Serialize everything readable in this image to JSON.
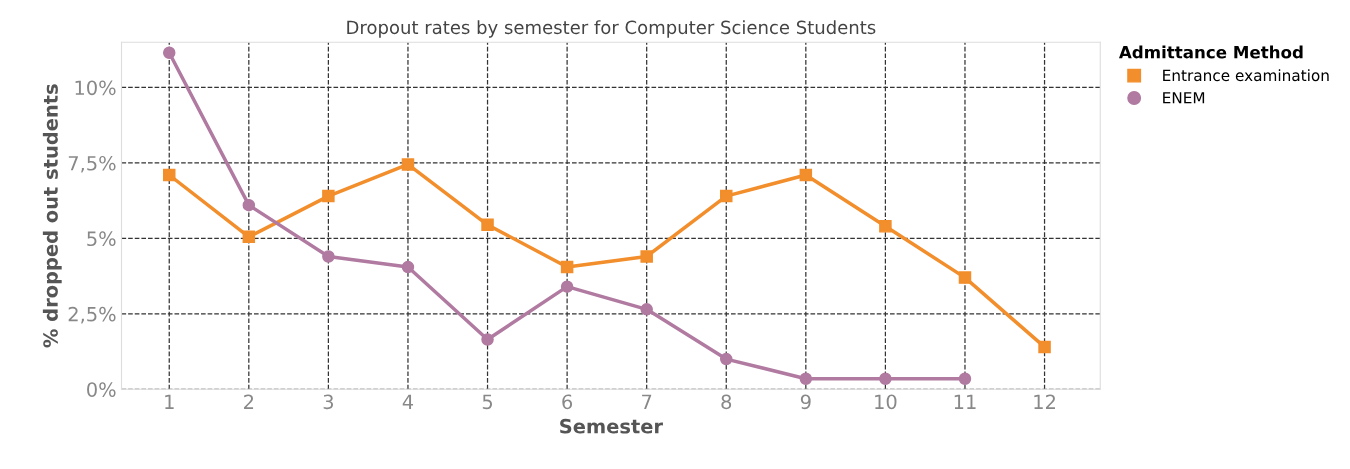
{
  "chart_data": {
    "type": "line",
    "title": "Dropout rates by semester for Computer Science Students",
    "xlabel": "Semester",
    "ylabel": "% dropped out students",
    "legend_title": "Admittance Method",
    "x": [
      1,
      2,
      3,
      4,
      5,
      6,
      7,
      8,
      9,
      10,
      11,
      12
    ],
    "series": [
      {
        "name": "Entrance examination",
        "color": "#f28e2b",
        "marker": "square",
        "values": [
          7.1,
          5.05,
          6.4,
          7.45,
          5.45,
          4.05,
          4.4,
          6.4,
          7.1,
          5.4,
          3.7,
          1.4
        ]
      },
      {
        "name": "ENEM",
        "color": "#b07aa1",
        "marker": "circle",
        "values": [
          11.15,
          6.1,
          4.4,
          4.05,
          1.65,
          3.4,
          2.65,
          1.0,
          0.35,
          0.35,
          0.35,
          null
        ]
      }
    ],
    "xlim": [
      0.4,
      12.7
    ],
    "xticks": [
      1,
      2,
      3,
      4,
      5,
      6,
      7,
      8,
      9,
      10,
      11,
      12
    ],
    "ylim": [
      0,
      11.5
    ],
    "yticks": [
      {
        "value": 0,
        "label": "0%"
      },
      {
        "value": 2.5,
        "label": "2,5%"
      },
      {
        "value": 5,
        "label": "5%"
      },
      {
        "value": 7.5,
        "label": "7,5%"
      },
      {
        "value": 10,
        "label": "10%"
      }
    ],
    "grid": true,
    "legend": "top right",
    "line_style": "solid"
  }
}
